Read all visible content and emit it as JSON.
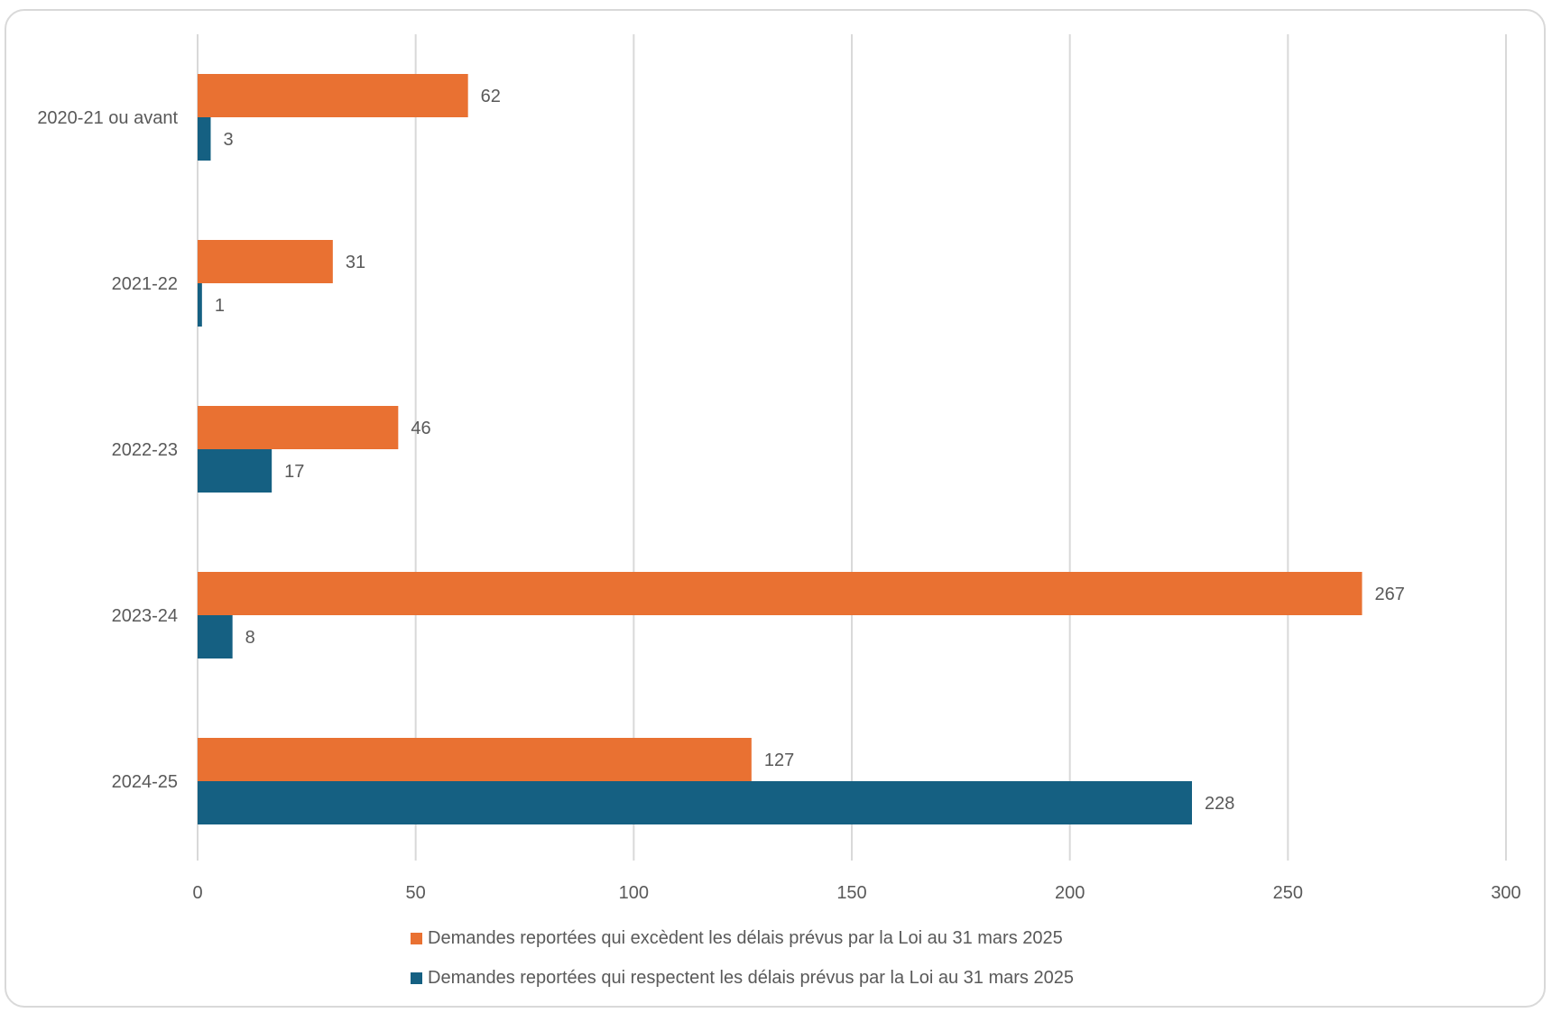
{
  "chart_data": {
    "type": "bar",
    "orientation": "horizontal",
    "categories": [
      "2020-21 ou avant",
      "2021-22",
      "2022-23",
      "2023-24",
      "2024-25"
    ],
    "series": [
      {
        "name": "Demandes reportées qui excèdent les délais prévus par la Loi au 31 mars 2025",
        "color": "#E97132",
        "values": [
          62,
          31,
          46,
          267,
          127
        ]
      },
      {
        "name": "Demandes reportées qui respectent les délais prévus par la Loi au 31 mars 2025",
        "color": "#156082",
        "values": [
          3,
          1,
          17,
          8,
          228
        ]
      }
    ],
    "xlim": [
      0,
      300
    ],
    "xticks": [
      0,
      50,
      100,
      150,
      200,
      250,
      300
    ],
    "grid": "vertical",
    "data_labels": true,
    "legend": "bottom"
  }
}
